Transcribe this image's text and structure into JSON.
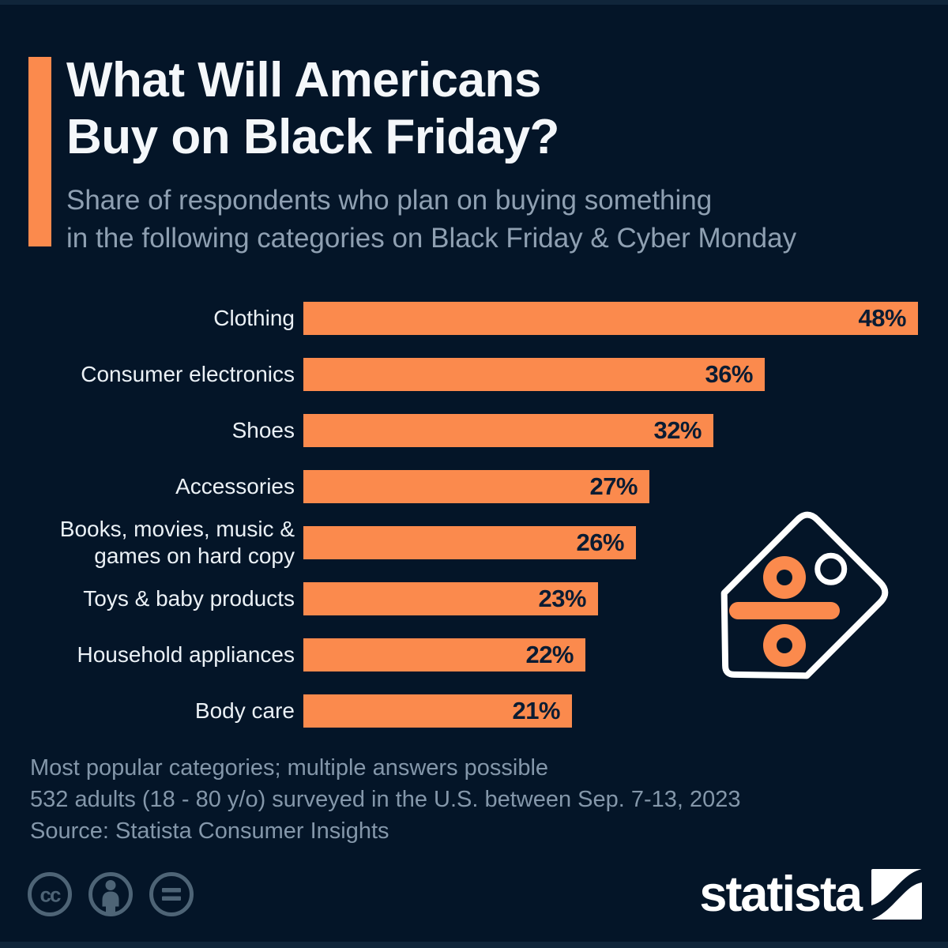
{
  "page": {
    "background_color": "#041528",
    "accent_color": "#FB8A4D"
  },
  "header": {
    "title": "What Will Americans\nBuy on Black Friday?",
    "subtitle": "Share of respondents who plan on buying something\nin the following categories on Black Friday & Cyber Monday"
  },
  "chart_data": {
    "type": "bar",
    "orientation": "horizontal",
    "title": "What Will Americans Buy on Black Friday?",
    "categories": [
      "Clothing",
      "Consumer electronics",
      "Shoes",
      "Accessories",
      "Books, movies, music &\ngames on hard copy",
      "Toys & baby products",
      "Household appliances",
      "Body care"
    ],
    "values": [
      48,
      36,
      32,
      27,
      26,
      23,
      22,
      21
    ],
    "value_labels": [
      "48%",
      "36%",
      "32%",
      "27%",
      "26%",
      "23%",
      "22%",
      "21%"
    ],
    "unit": "%",
    "xlim": [
      0,
      48
    ],
    "grid": false,
    "legend_position": "none",
    "bar_color": "#FB8A4D",
    "category_label_color": "#EBF1F6",
    "value_label_color": "#0A1C33",
    "value_label_position": "inside-end"
  },
  "decoration": {
    "tag_icon": "price-tag-percent-icon",
    "tag_outline_color": "#FFFFFF",
    "tag_symbol_color": "#FB8A4D"
  },
  "footer": {
    "notes": "Most popular categories; multiple answers possible\n532 adults (18 - 80 y/o) surveyed in the U.S. between Sep. 7-13, 2023",
    "source": "Source: Statista Consumer Insights",
    "license_icons": [
      "cc-icon",
      "attribution-person-icon",
      "equals-icon"
    ],
    "license_icon_color": "#4E6476",
    "logo_text": "statista"
  }
}
